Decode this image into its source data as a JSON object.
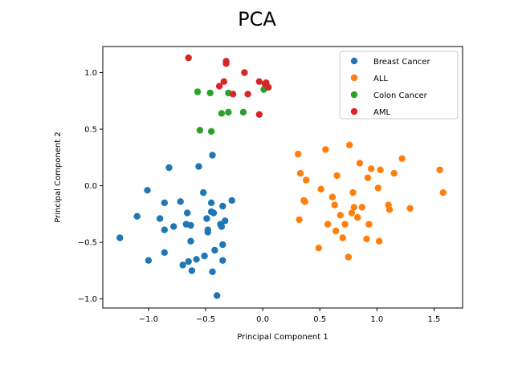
{
  "chart_data": {
    "type": "scatter",
    "title": "PCA",
    "xlabel": "Principal Component 1",
    "ylabel": "Principal Component 2",
    "xlim": [
      -1.4,
      1.75
    ],
    "ylim": [
      -1.08,
      1.23
    ],
    "xticks": [
      -1.0,
      -0.5,
      0.0,
      0.5,
      1.0,
      1.5
    ],
    "xtick_labels": [
      "−1.0",
      "−0.5",
      "0.0",
      "0.5",
      "1.0",
      "1.5"
    ],
    "yticks": [
      -1.0,
      -0.5,
      0.0,
      0.5,
      1.0
    ],
    "ytick_labels": [
      "−1.0",
      "−0.5",
      "0.0",
      "0.5",
      "1.0"
    ],
    "grid": false,
    "legend_position": "top-right",
    "series": [
      {
        "name": "Breast Cancer",
        "color": "#1f77b4",
        "points": [
          [
            -1.25,
            -0.46
          ],
          [
            -1.1,
            -0.27
          ],
          [
            -1.0,
            -0.66
          ],
          [
            -1.01,
            -0.04
          ],
          [
            -0.9,
            -0.29
          ],
          [
            -0.86,
            -0.15
          ],
          [
            -0.86,
            -0.39
          ],
          [
            -0.86,
            -0.59
          ],
          [
            -0.82,
            0.16
          ],
          [
            -0.78,
            -0.36
          ],
          [
            -0.72,
            -0.14
          ],
          [
            -0.7,
            -0.7
          ],
          [
            -0.67,
            -0.34
          ],
          [
            -0.66,
            -0.24
          ],
          [
            -0.65,
            -0.67
          ],
          [
            -0.63,
            -0.35
          ],
          [
            -0.63,
            -0.49
          ],
          [
            -0.62,
            -0.75
          ],
          [
            -0.58,
            -0.65
          ],
          [
            -0.56,
            0.17
          ],
          [
            -0.52,
            -0.06
          ],
          [
            -0.51,
            -0.62
          ],
          [
            -0.49,
            -0.29
          ],
          [
            -0.48,
            -0.39
          ],
          [
            -0.48,
            -0.41
          ],
          [
            -0.45,
            -0.15
          ],
          [
            -0.45,
            -0.23
          ],
          [
            -0.43,
            -0.24
          ],
          [
            -0.44,
            0.27
          ],
          [
            -0.44,
            -0.76
          ],
          [
            -0.42,
            -0.57
          ],
          [
            -0.4,
            -0.97
          ],
          [
            -0.37,
            -0.34
          ],
          [
            -0.36,
            -0.36
          ],
          [
            -0.35,
            -0.52
          ],
          [
            -0.35,
            -0.66
          ],
          [
            -0.35,
            -0.18
          ],
          [
            -0.33,
            -0.31
          ],
          [
            -0.27,
            -0.13
          ]
        ]
      },
      {
        "name": "ALL",
        "color": "#ff7f0e",
        "points": [
          [
            0.31,
            0.28
          ],
          [
            0.32,
            -0.3
          ],
          [
            0.33,
            0.11
          ],
          [
            0.36,
            -0.13
          ],
          [
            0.37,
            -0.14
          ],
          [
            0.38,
            0.05
          ],
          [
            0.49,
            -0.55
          ],
          [
            0.51,
            -0.03
          ],
          [
            0.55,
            0.32
          ],
          [
            0.57,
            -0.34
          ],
          [
            0.61,
            -0.1
          ],
          [
            0.63,
            -0.17
          ],
          [
            0.64,
            -0.4
          ],
          [
            0.65,
            0.09
          ],
          [
            0.68,
            -0.26
          ],
          [
            0.7,
            -0.46
          ],
          [
            0.72,
            -0.34
          ],
          [
            0.75,
            -0.63
          ],
          [
            0.76,
            0.36
          ],
          [
            0.78,
            -0.24
          ],
          [
            0.79,
            -0.06
          ],
          [
            0.8,
            -0.19
          ],
          [
            0.83,
            -0.28
          ],
          [
            0.85,
            0.2
          ],
          [
            0.87,
            -0.19
          ],
          [
            0.91,
            -0.47
          ],
          [
            0.92,
            0.07
          ],
          [
            0.93,
            -0.34
          ],
          [
            0.95,
            0.15
          ],
          [
            1.01,
            -0.02
          ],
          [
            1.02,
            -0.49
          ],
          [
            1.03,
            0.14
          ],
          [
            1.1,
            -0.17
          ],
          [
            1.11,
            -0.21
          ],
          [
            1.15,
            0.11
          ],
          [
            1.22,
            0.24
          ],
          [
            1.29,
            -0.2
          ],
          [
            1.55,
            0.14
          ],
          [
            1.58,
            -0.06
          ]
        ]
      },
      {
        "name": "Colon Cancer",
        "color": "#2ca02c",
        "points": [
          [
            -0.55,
            0.49
          ],
          [
            -0.45,
            0.48
          ],
          [
            -0.57,
            0.83
          ],
          [
            -0.46,
            0.82
          ],
          [
            -0.36,
            0.64
          ],
          [
            -0.3,
            0.65
          ],
          [
            -0.3,
            0.82
          ],
          [
            -0.17,
            0.65
          ],
          [
            0.01,
            0.85
          ]
        ]
      },
      {
        "name": "AML",
        "color": "#d62728",
        "points": [
          [
            -0.65,
            1.13
          ],
          [
            -0.38,
            0.88
          ],
          [
            -0.34,
            0.92
          ],
          [
            -0.32,
            1.1
          ],
          [
            -0.32,
            1.08
          ],
          [
            -0.26,
            0.81
          ],
          [
            -0.16,
            1.0
          ],
          [
            -0.13,
            0.81
          ],
          [
            -0.03,
            0.63
          ],
          [
            -0.03,
            0.92
          ],
          [
            0.02,
            0.9
          ],
          [
            0.03,
            0.91
          ],
          [
            0.05,
            0.87
          ]
        ]
      }
    ]
  }
}
